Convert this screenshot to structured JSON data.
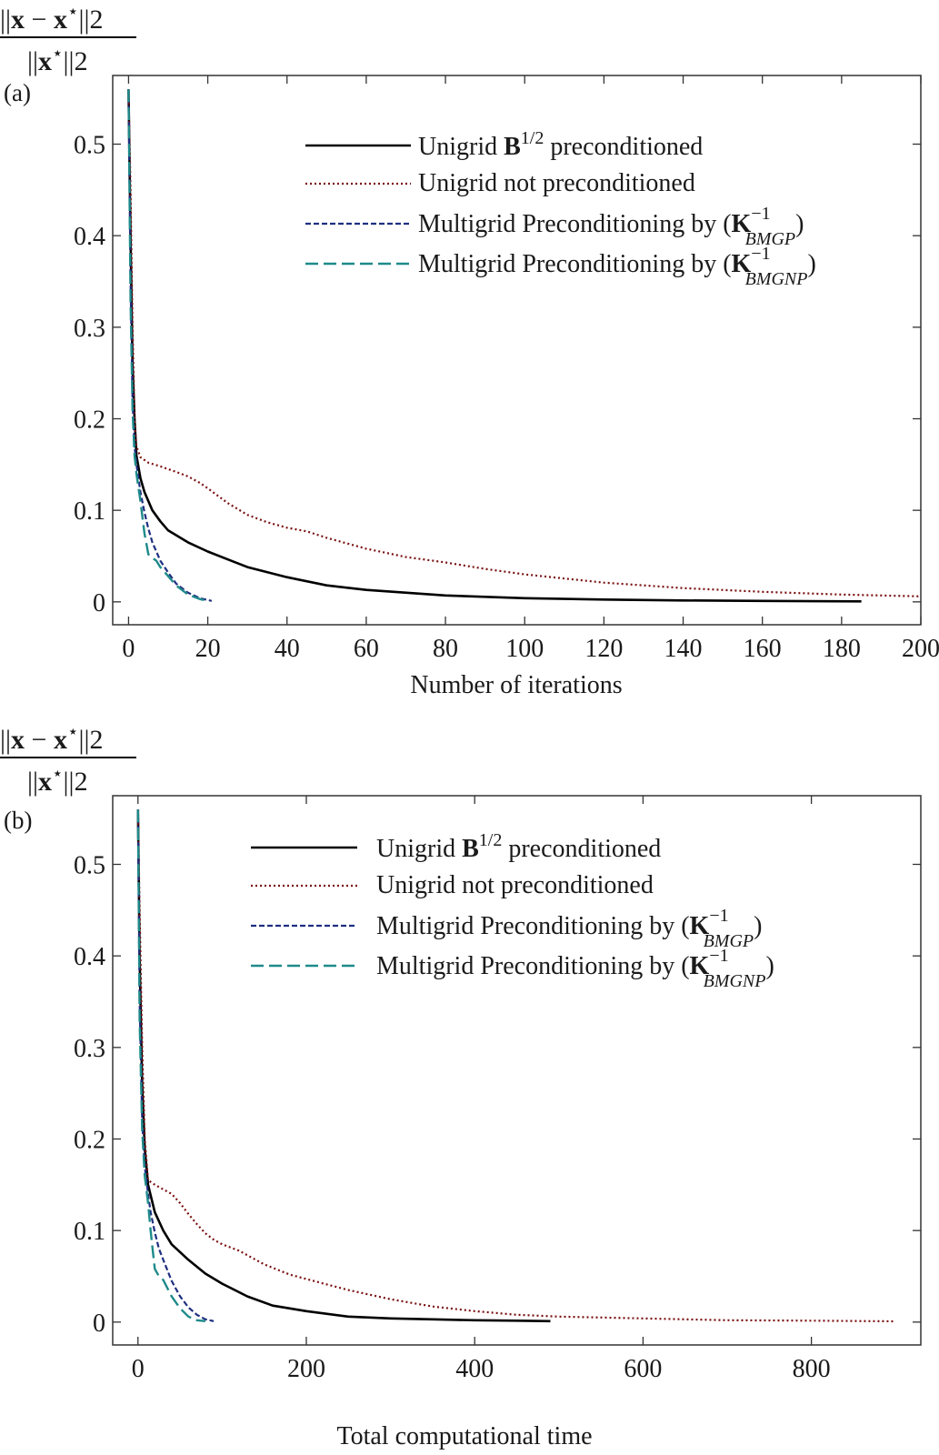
{
  "ylabel": {
    "num_pre": "||",
    "num_x1": "x",
    "num_minus": " − ",
    "num_x2": "x",
    "num_star": "⋆",
    "num_post": "||",
    "num_sub": "2",
    "den_pre": "||",
    "den_x": "x",
    "den_star": "⋆",
    "den_post": "||",
    "den_sub": "2"
  },
  "legend": {
    "unigrid_pre": "Unigrid ",
    "unigrid_B": "B",
    "unigrid_sup": "1/2",
    "unigrid_post": " preconditioned",
    "notpre": "Unigrid not preconditioned",
    "mg_text": "Multigrid Preconditioning by (",
    "mg_K": "K",
    "mg_sup": "−1",
    "mg1_sub": "BMGP",
    "mg2_sub": "BMGNP",
    "mg_close": ")"
  },
  "colors": {
    "unigrid": "#000000",
    "notpre": "#7a1010",
    "bmgp": "#1f2f80",
    "bmgnp": "#1f8a8a"
  },
  "chart_data": [
    {
      "type": "line",
      "panel_label": "(a)",
      "xlabel": "Number of iterations",
      "ylabel": "||x − x⋆||2 / ||x⋆||2",
      "xlim": [
        -4,
        200
      ],
      "ylim": [
        -0.025,
        0.575
      ],
      "xticks": [
        "0",
        "20",
        "40",
        "60",
        "80",
        "100",
        "120",
        "140",
        "160",
        "180",
        "200"
      ],
      "yticks": [
        "0",
        "0.1",
        "0.2",
        "0.3",
        "0.4",
        "0.5"
      ],
      "legend_position": "top-right",
      "series": [
        {
          "name": "Unigrid B1/2 preconditioned",
          "key": "unigrid",
          "x": [
            0,
            0.5,
            1,
            1.5,
            2,
            3,
            4,
            6,
            8,
            10,
            15,
            20,
            30,
            40,
            50,
            60,
            80,
            100,
            120,
            140,
            160,
            185
          ],
          "y": [
            0.56,
            0.4,
            0.26,
            0.2,
            0.16,
            0.135,
            0.12,
            0.1,
            0.088,
            0.078,
            0.065,
            0.055,
            0.038,
            0.027,
            0.018,
            0.013,
            0.007,
            0.004,
            0.0025,
            0.0015,
            0.001,
            0.0005
          ]
        },
        {
          "name": "Unigrid not preconditioned",
          "key": "notpre",
          "x": [
            0,
            0.5,
            1,
            1.5,
            2,
            3,
            5,
            8,
            12,
            15,
            18,
            20,
            25,
            30,
            35,
            40,
            45,
            50,
            60,
            70,
            80,
            90,
            100,
            120,
            140,
            160,
            180,
            200
          ],
          "y": [
            0.56,
            0.45,
            0.3,
            0.2,
            0.17,
            0.158,
            0.152,
            0.148,
            0.142,
            0.137,
            0.13,
            0.124,
            0.108,
            0.095,
            0.087,
            0.081,
            0.077,
            0.07,
            0.058,
            0.049,
            0.043,
            0.036,
            0.03,
            0.021,
            0.015,
            0.011,
            0.008,
            0.006
          ]
        },
        {
          "name": "Multigrid Preconditioning by (K−1 BMGP)",
          "key": "bmgp",
          "x": [
            0,
            0.5,
            1,
            1.5,
            2,
            3,
            4,
            5,
            6,
            8,
            10,
            12,
            15,
            18,
            21
          ],
          "y": [
            0.56,
            0.35,
            0.22,
            0.17,
            0.15,
            0.12,
            0.098,
            0.08,
            0.065,
            0.045,
            0.032,
            0.02,
            0.01,
            0.004,
            0.001
          ]
        },
        {
          "name": "Multigrid Preconditioning by (K−1 BMGNP)",
          "key": "bmgnp",
          "x": [
            0,
            0.5,
            1,
            1.5,
            2,
            3,
            4,
            5,
            6,
            7,
            8,
            10,
            12,
            15,
            18,
            20
          ],
          "y": [
            0.56,
            0.33,
            0.21,
            0.16,
            0.14,
            0.11,
            0.075,
            0.052,
            0.048,
            0.045,
            0.038,
            0.028,
            0.018,
            0.008,
            0.003,
            0.001
          ]
        }
      ]
    },
    {
      "type": "line",
      "panel_label": "(b)",
      "xlabel": "Total computational time",
      "ylabel": "||x − x⋆||2 / ||x⋆||2",
      "xlim": [
        -30,
        930
      ],
      "ylim": [
        -0.025,
        0.575
      ],
      "xticks": [
        "0",
        "200",
        "400",
        "600",
        "800"
      ],
      "yticks": [
        "0",
        "0.1",
        "0.2",
        "0.3",
        "0.4",
        "0.5"
      ],
      "legend_position": "top-right",
      "series": [
        {
          "name": "Unigrid B1/2 preconditioned",
          "key": "unigrid",
          "x": [
            0,
            2,
            5,
            8,
            12,
            20,
            30,
            40,
            60,
            80,
            100,
            130,
            160,
            200,
            250,
            300,
            350,
            400,
            450,
            490
          ],
          "y": [
            0.56,
            0.4,
            0.26,
            0.19,
            0.15,
            0.12,
            0.1,
            0.085,
            0.068,
            0.053,
            0.042,
            0.028,
            0.018,
            0.012,
            0.006,
            0.004,
            0.003,
            0.002,
            0.0015,
            0.001
          ]
        },
        {
          "name": "Unigrid not preconditioned",
          "key": "notpre",
          "x": [
            0,
            2,
            5,
            8,
            12,
            20,
            30,
            40,
            50,
            60,
            70,
            80,
            90,
            100,
            120,
            150,
            180,
            200,
            250,
            300,
            350,
            400,
            450,
            500,
            600,
            700,
            800,
            900
          ],
          "y": [
            0.56,
            0.45,
            0.3,
            0.2,
            0.155,
            0.15,
            0.145,
            0.14,
            0.13,
            0.118,
            0.107,
            0.097,
            0.09,
            0.085,
            0.078,
            0.063,
            0.052,
            0.047,
            0.035,
            0.025,
            0.017,
            0.012,
            0.008,
            0.006,
            0.004,
            0.002,
            0.0015,
            0.0008
          ]
        },
        {
          "name": "Multigrid Preconditioning by (K−1 BMGP)",
          "key": "bmgp",
          "x": [
            0,
            2,
            5,
            8,
            12,
            15,
            20,
            25,
            30,
            40,
            50,
            60,
            70,
            80,
            90
          ],
          "y": [
            0.56,
            0.35,
            0.22,
            0.17,
            0.14,
            0.12,
            0.098,
            0.08,
            0.068,
            0.045,
            0.028,
            0.016,
            0.008,
            0.003,
            0.001
          ]
        },
        {
          "name": "Multigrid Preconditioning by (K−1 BMGNP)",
          "key": "bmgnp",
          "x": [
            0,
            2,
            5,
            8,
            12,
            15,
            18,
            20,
            25,
            30,
            35,
            40,
            50,
            60,
            70,
            80
          ],
          "y": [
            0.56,
            0.33,
            0.21,
            0.16,
            0.13,
            0.1,
            0.075,
            0.058,
            0.05,
            0.046,
            0.037,
            0.028,
            0.015,
            0.006,
            0.002,
            0.001
          ]
        }
      ]
    }
  ]
}
